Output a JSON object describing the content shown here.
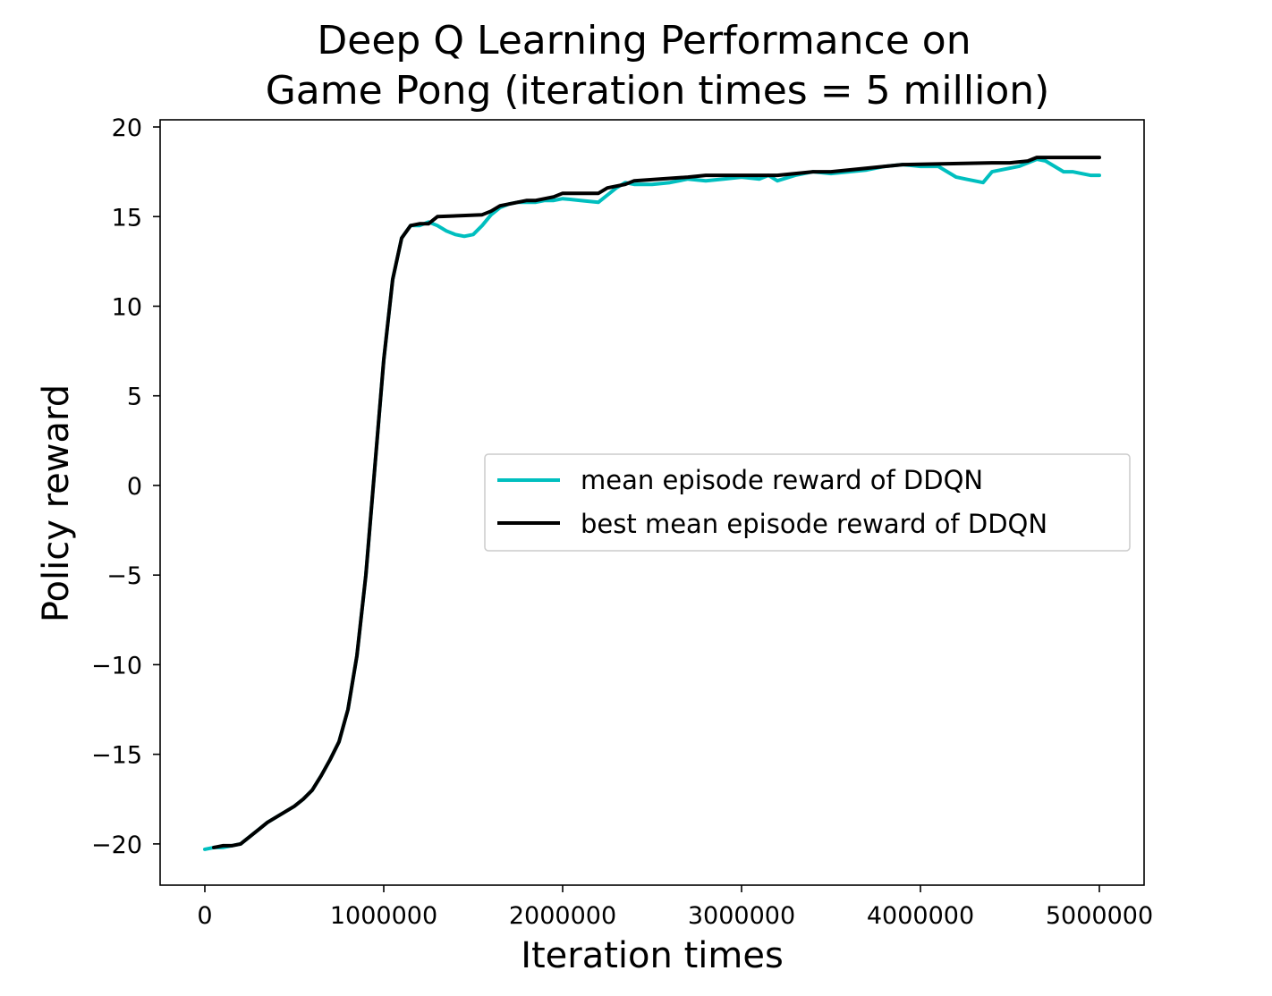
{
  "chart_data": {
    "type": "line",
    "title_lines": [
      "Deep Q Learning Performance on",
      "Game Pong (iteration times = 5 million)"
    ],
    "xlabel": "Iteration times",
    "ylabel": "Policy reward",
    "xlim": [
      -250000,
      5250000
    ],
    "ylim": [
      -22.3,
      20.4
    ],
    "x_ticks": [
      0,
      1000000,
      2000000,
      3000000,
      4000000,
      5000000
    ],
    "x_tick_labels": [
      "0",
      "1000000",
      "2000000",
      "3000000",
      "4000000",
      "5000000"
    ],
    "y_ticks": [
      -20,
      -15,
      -10,
      -5,
      0,
      5,
      10,
      15,
      20
    ],
    "y_tick_labels": [
      "−20",
      "−15",
      "−10",
      "−5",
      "0",
      "5",
      "10",
      "15",
      "20"
    ],
    "legend_position": "center-right",
    "grid": false,
    "series": [
      {
        "name": "mean episode reward of DDQN",
        "color": "#00bfbf",
        "x": [
          0,
          50000,
          100000,
          150000,
          200000,
          250000,
          300000,
          350000,
          400000,
          450000,
          500000,
          550000,
          600000,
          650000,
          700000,
          750000,
          800000,
          850000,
          900000,
          950000,
          1000000,
          1050000,
          1100000,
          1150000,
          1200000,
          1250000,
          1300000,
          1350000,
          1400000,
          1450000,
          1500000,
          1550000,
          1600000,
          1650000,
          1700000,
          1750000,
          1800000,
          1850000,
          1900000,
          1950000,
          2000000,
          2100000,
          2200000,
          2250000,
          2300000,
          2350000,
          2400000,
          2500000,
          2600000,
          2700000,
          2800000,
          2900000,
          3000000,
          3100000,
          3150000,
          3200000,
          3300000,
          3400000,
          3500000,
          3600000,
          3700000,
          3800000,
          3900000,
          4000000,
          4100000,
          4200000,
          4250000,
          4300000,
          4350000,
          4400000,
          4500000,
          4550000,
          4600000,
          4650000,
          4700000,
          4750000,
          4800000,
          4850000,
          4900000,
          4950000,
          5000000
        ],
        "y": [
          -20.3,
          -20.2,
          -20.2,
          -20.1,
          -20.0,
          -19.6,
          -19.2,
          -18.8,
          -18.5,
          -18.2,
          -17.9,
          -17.5,
          -17.0,
          -16.2,
          -15.3,
          -14.3,
          -12.5,
          -9.5,
          -5.0,
          1.0,
          7.0,
          11.5,
          13.8,
          14.5,
          14.5,
          14.7,
          14.5,
          14.2,
          14.0,
          13.9,
          14.0,
          14.5,
          15.1,
          15.5,
          15.7,
          15.8,
          15.8,
          15.8,
          15.9,
          15.9,
          16.0,
          15.9,
          15.8,
          16.2,
          16.6,
          16.9,
          16.8,
          16.8,
          16.9,
          17.1,
          17.0,
          17.1,
          17.2,
          17.1,
          17.3,
          17.0,
          17.3,
          17.5,
          17.4,
          17.5,
          17.6,
          17.8,
          17.9,
          17.8,
          17.8,
          17.2,
          17.1,
          17.0,
          16.9,
          17.5,
          17.7,
          17.8,
          18.0,
          18.2,
          18.1,
          17.8,
          17.5,
          17.5,
          17.4,
          17.3,
          17.3
        ]
      },
      {
        "name": "best mean episode reward of DDQN",
        "color": "#000000",
        "x": [
          50000,
          100000,
          150000,
          200000,
          250000,
          300000,
          350000,
          400000,
          450000,
          500000,
          550000,
          600000,
          650000,
          700000,
          750000,
          800000,
          850000,
          900000,
          950000,
          1000000,
          1050000,
          1100000,
          1150000,
          1200000,
          1250000,
          1300000,
          1550000,
          1600000,
          1650000,
          1700000,
          1750000,
          1800000,
          1850000,
          1900000,
          1950000,
          2000000,
          2200000,
          2250000,
          2350000,
          2400000,
          2700000,
          2800000,
          3200000,
          3300000,
          3400000,
          3500000,
          3700000,
          3800000,
          3900000,
          4400000,
          4500000,
          4600000,
          4650000,
          4700000,
          5000000
        ],
        "y": [
          -20.2,
          -20.1,
          -20.1,
          -20.0,
          -19.6,
          -19.2,
          -18.8,
          -18.5,
          -18.2,
          -17.9,
          -17.5,
          -17.0,
          -16.2,
          -15.3,
          -14.3,
          -12.5,
          -9.5,
          -5.0,
          1.0,
          7.0,
          11.5,
          13.8,
          14.5,
          14.6,
          14.6,
          15.0,
          15.1,
          15.3,
          15.6,
          15.7,
          15.8,
          15.9,
          15.9,
          16.0,
          16.1,
          16.3,
          16.3,
          16.6,
          16.8,
          17.0,
          17.2,
          17.3,
          17.3,
          17.4,
          17.5,
          17.5,
          17.7,
          17.8,
          17.9,
          18.0,
          18.0,
          18.1,
          18.3,
          18.3,
          18.3
        ]
      }
    ]
  }
}
